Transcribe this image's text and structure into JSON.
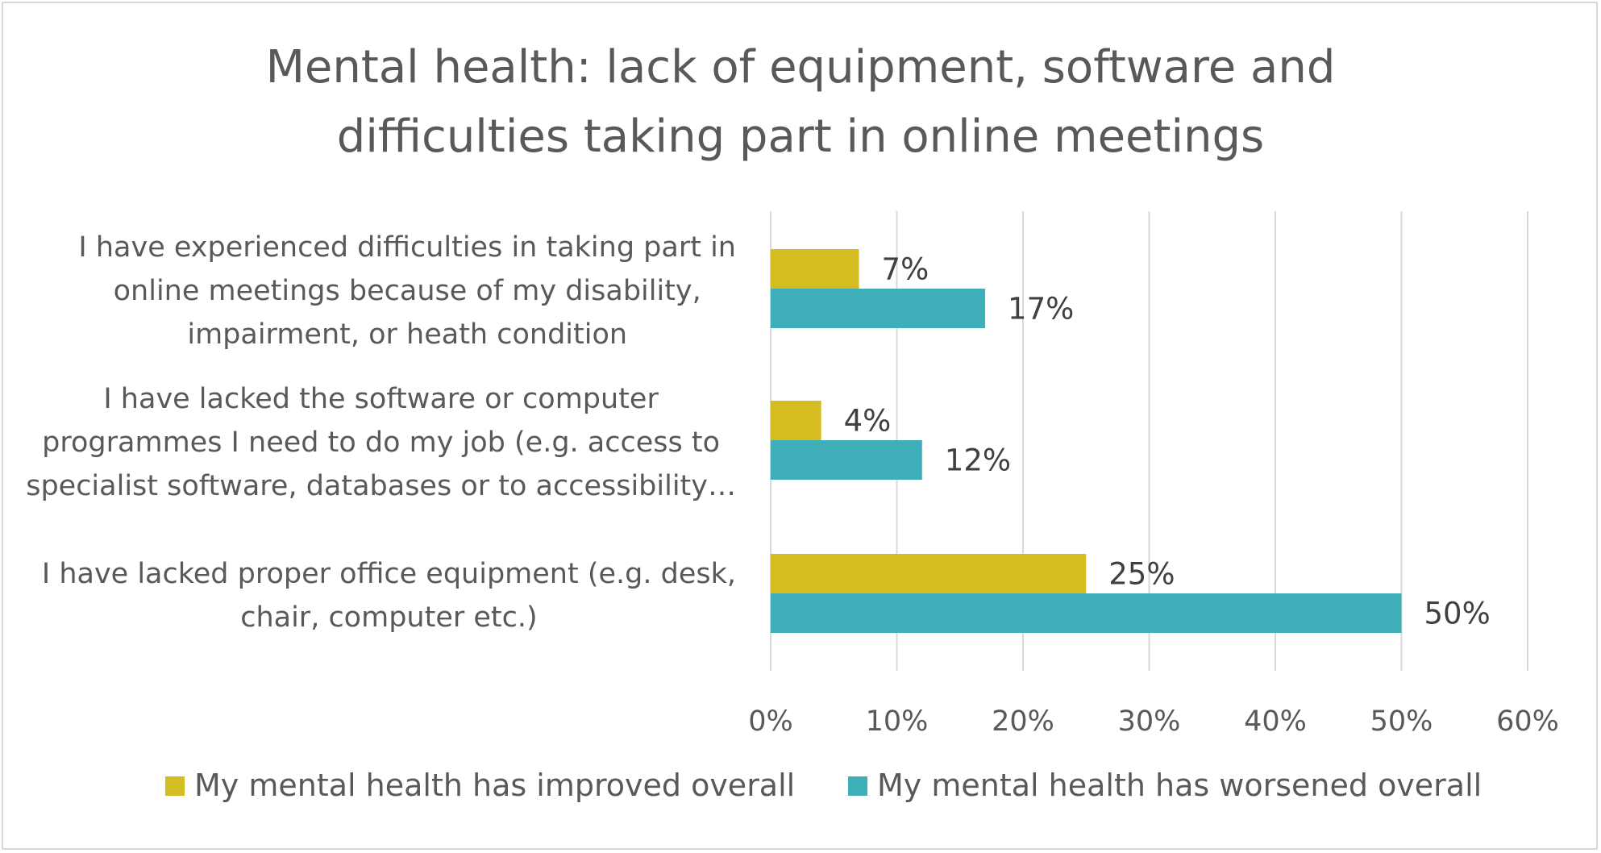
{
  "chart_data": {
    "type": "bar",
    "orientation": "horizontal",
    "title_lines": [
      "Mental health: lack of equipment, software and",
      "difficulties taking part in online meetings"
    ],
    "categories": [
      {
        "label_lines": [
          "I have experienced difficulties in taking part in",
          "online meetings because of my disability,",
          "impairment, or heath condition"
        ]
      },
      {
        "label_lines": [
          "I have lacked the software or computer",
          "programmes I need to do my job (e.g. access to",
          "specialist software, databases or to accessibility…"
        ]
      },
      {
        "label_lines": [
          "I have lacked proper office equipment (e.g. desk,",
          "chair, computer etc.)"
        ]
      }
    ],
    "series": [
      {
        "name": "My mental health has improved overall",
        "color": "#d4bc21",
        "values": [
          7,
          4,
          25
        ],
        "data_labels": [
          "7%",
          "4%",
          "25%"
        ]
      },
      {
        "name": "My mental health has worsened overall",
        "color": "#3eaeb8",
        "values": [
          17,
          12,
          50
        ],
        "data_labels": [
          "17%",
          "12%",
          "50%"
        ]
      }
    ],
    "x_ticks": [
      "0%",
      "10%",
      "20%",
      "30%",
      "40%",
      "50%",
      "60%"
    ],
    "xlim": [
      0,
      60
    ],
    "grid": true,
    "grid_color": "#d9d9d9",
    "legend_position": "bottom"
  }
}
